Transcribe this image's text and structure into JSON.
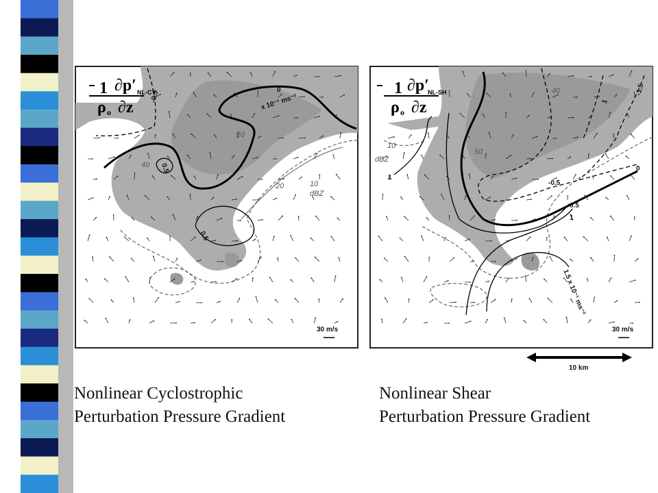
{
  "captions": [
    {
      "line1": "Nonlinear Cyclostrophic",
      "line2": "Perturbation Pressure Gradient"
    },
    {
      "line1": "Nonlinear Shear",
      "line2": "Perturbation Pressure Gradient"
    }
  ],
  "panels": [
    {
      "equation": {
        "one": "1",
        "rho": "ρ",
        "o": "o",
        "dp": "∂p′",
        "sub": "NL-CY",
        "dz": "∂z"
      },
      "labels": [
        "-0.5",
        "0",
        "x 10⁻¹ ms⁻²",
        "50",
        "0.5",
        "40",
        "20",
        "10",
        "dBZ",
        "0.5"
      ],
      "scale": "30 m/s"
    },
    {
      "equation": {
        "one": "1",
        "rho": "ρ",
        "o": "o",
        "dp": "∂p′",
        "sub": "NL-SH",
        "dz": "∂z"
      },
      "labels": [
        "-1.5",
        "1",
        "40",
        "10",
        "dBZ",
        "50",
        "1",
        "0",
        "-0.5",
        "0.5",
        "1",
        "1.5 x 10⁻¹ ms⁻²"
      ],
      "scale": "30 m/s"
    }
  ],
  "scale_bar": "10 km"
}
